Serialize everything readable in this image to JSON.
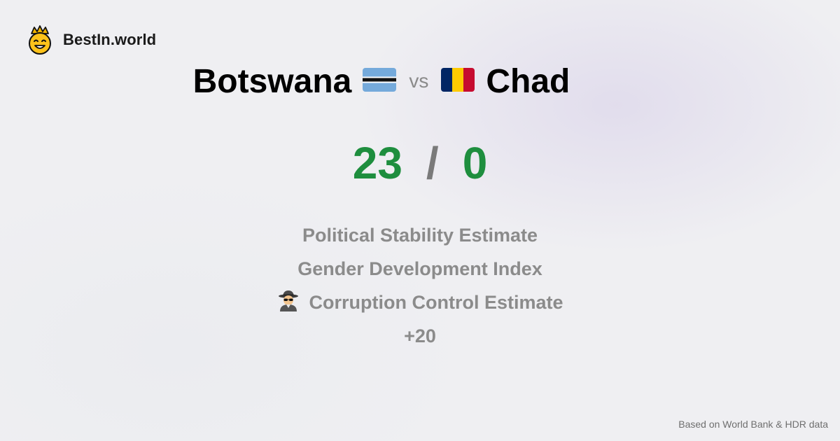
{
  "brand": {
    "name": "BestIn.world",
    "logo_icon": "crowned-smiley-icon"
  },
  "comparison": {
    "left_country": "Botswana",
    "left_flag_icon": "botswana-flag-icon",
    "vs_label": "vs",
    "right_country": "Chad",
    "right_flag_icon": "chad-flag-icon"
  },
  "score": {
    "left": "23",
    "separator": "/",
    "right": "0"
  },
  "metrics": [
    {
      "label": "Political Stability Estimate"
    },
    {
      "label": "Gender Development Index"
    },
    {
      "label": "Corruption Control Estimate",
      "icon": "detective-icon"
    }
  ],
  "more_label": "+20",
  "footer": {
    "source": "Based on World Bank & HDR data"
  },
  "colors": {
    "score_green": "#1e8e3e",
    "botswana_blue": "#75aadb",
    "chad_blue": "#002664",
    "chad_yellow": "#fecb00",
    "chad_red": "#c60c30"
  }
}
